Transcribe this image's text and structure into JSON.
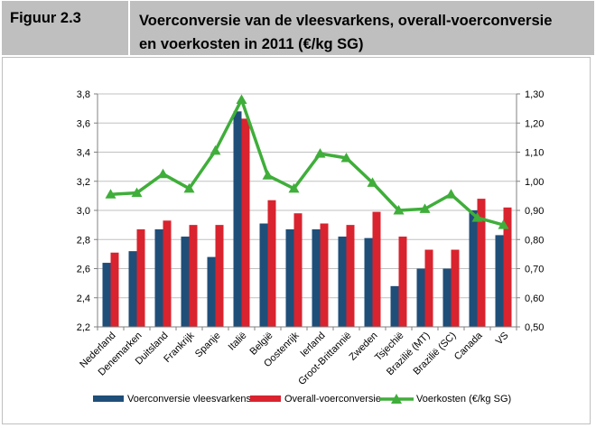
{
  "figure": {
    "label": "Figuur 2.3",
    "title_line1": "Voerconversie van de vleesvarkens, overall-voerconversie",
    "title_line2": "en voerkosten in 2011 (€/kg SG)"
  },
  "colors": {
    "header_bg": "#bfbfbf",
    "series_blue": "#1f4e79",
    "series_red": "#d9232e",
    "series_green": "#3fae3a",
    "grid": "#c0c0c0"
  },
  "chart_data": {
    "type": "bar",
    "categories": [
      "Nederland",
      "Denemarken",
      "Duitsland",
      "Frankrijk",
      "Spanje",
      "Italië",
      "België",
      "Oostenrijk",
      "Ierland",
      "Groot-Brittannië",
      "Zweden",
      "Tsjechië",
      "Brazilië (MT)",
      "Brazilië (SC)",
      "Canada",
      "VS"
    ],
    "series": [
      {
        "name": "Voerconversie vleesvarkens",
        "axis": "left",
        "kind": "bar",
        "values": [
          2.64,
          2.72,
          2.87,
          2.82,
          2.68,
          3.68,
          2.91,
          2.87,
          2.87,
          2.82,
          2.81,
          2.48,
          2.6,
          2.6,
          3.0,
          2.83
        ]
      },
      {
        "name": "Overall-voerconversie",
        "axis": "left",
        "kind": "bar",
        "values": [
          2.71,
          2.87,
          2.93,
          2.9,
          2.9,
          3.63,
          3.07,
          2.98,
          2.91,
          2.9,
          2.99,
          2.82,
          2.73,
          2.73,
          3.08,
          3.02
        ]
      },
      {
        "name": "Voerkosten (€/kg SG)",
        "axis": "right",
        "kind": "line",
        "values": [
          0.955,
          0.96,
          1.025,
          0.975,
          1.105,
          1.28,
          1.02,
          0.975,
          1.095,
          1.08,
          0.995,
          0.9,
          0.905,
          0.955,
          0.875,
          0.85
        ]
      }
    ],
    "yleft": {
      "min": 2.2,
      "max": 3.8,
      "ticks": [
        "2,2",
        "2,4",
        "2,6",
        "2,8",
        "3,0",
        "3,2",
        "3,4",
        "3,6",
        "3,8"
      ]
    },
    "yright": {
      "min": 0.5,
      "max": 1.3,
      "ticks": [
        "0,50",
        "0,60",
        "0,70",
        "0,80",
        "0,90",
        "1,00",
        "1,10",
        "1,20",
        "1,30"
      ]
    },
    "grid": true,
    "legend_position": "bottom"
  }
}
